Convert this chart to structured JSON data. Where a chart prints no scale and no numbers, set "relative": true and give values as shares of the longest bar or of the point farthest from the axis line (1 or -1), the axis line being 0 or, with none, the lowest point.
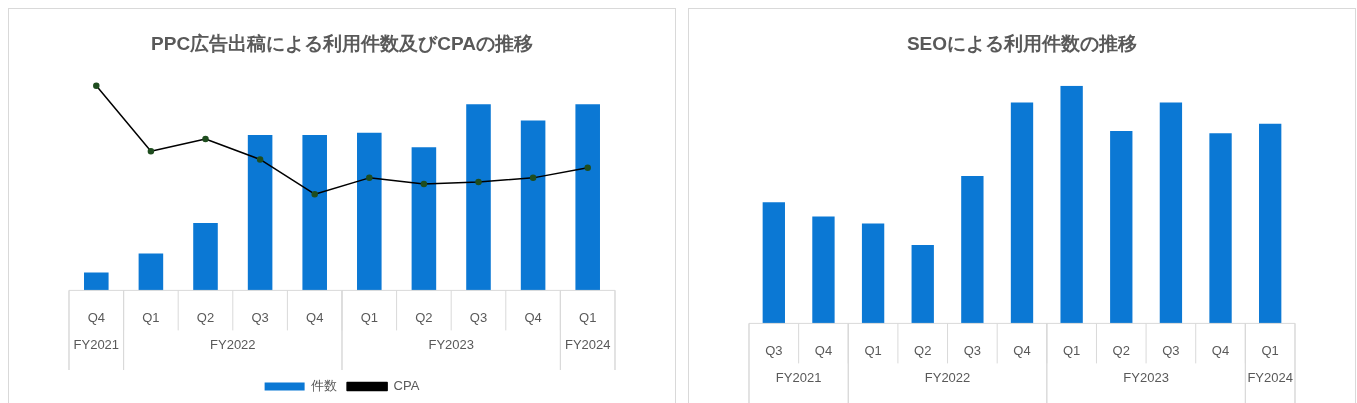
{
  "chart_data": [
    {
      "type": "bar",
      "title": "PPC広告出稿による利用件数及びCPAの推移",
      "relative": true,
      "categories": [
        "Q4",
        "Q1",
        "Q2",
        "Q3",
        "Q4",
        "Q1",
        "Q2",
        "Q3",
        "Q4",
        "Q1"
      ],
      "series": [
        {
          "name": "件数",
          "type": "bar",
          "color": "#0b78d4",
          "values": [
            0.087,
            0.18,
            0.33,
            0.76,
            0.76,
            0.77,
            0.7,
            0.91,
            0.83,
            0.91
          ]
        },
        {
          "name": "CPA",
          "type": "line",
          "color": "#000000",
          "values": [
            1,
            0.68,
            0.74,
            0.64,
            0.47,
            0.55,
            0.52,
            0.53,
            0.55,
            0.6
          ]
        }
      ],
      "marker": "circle",
      "legend": "bottom",
      "annotations": [
        "FY2021",
        "FY2022",
        "FY2023",
        "FY2024"
      ]
    },
    {
      "type": "bar",
      "title": "SEOによる利用件数の推移",
      "relative": true,
      "categories": [
        "Q3",
        "Q4",
        "Q1",
        "Q2",
        "Q3",
        "Q4",
        "Q1",
        "Q2",
        "Q3",
        "Q4",
        "Q1"
      ],
      "series": [
        {
          "color": "#0b78d4",
          "values": [
            0.51,
            0.45,
            0.42,
            0.33,
            0.62,
            0.93,
            1,
            0.81,
            0.93,
            0.8,
            0.84
          ]
        }
      ],
      "annotations": [
        "FY2021",
        "FY2022",
        "FY2023",
        "FY2024"
      ]
    }
  ]
}
